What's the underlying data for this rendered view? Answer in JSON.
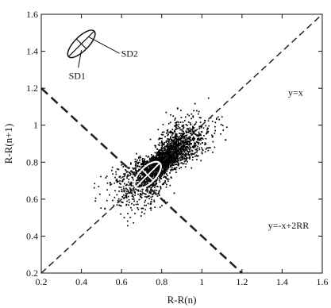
{
  "chart_data": {
    "type": "scatter",
    "title": "",
    "xlabel": "R-R(n)",
    "ylabel": "R-R(n+1)",
    "xlim": [
      0.2,
      1.6
    ],
    "ylim": [
      0.2,
      1.6
    ],
    "xticks": [
      "0.2",
      "0.4",
      "0.6",
      "0.8",
      "1",
      "1.2",
      "1.4",
      "1.6"
    ],
    "yticks": [
      "0.2",
      "0.4",
      "0.6",
      "0.8",
      "1",
      "1.2",
      "1.4",
      "1.6"
    ],
    "grid": false,
    "colors": {
      "points": "#000000",
      "ellipse": "#ffffff",
      "lines": "#222222"
    },
    "cloud": {
      "center": [
        0.8,
        0.8
      ],
      "spread_along_identity": 0.13,
      "spread_across_identity": 0.045,
      "range": [
        0.45,
        1.15
      ]
    },
    "lines": [
      {
        "name": "identity",
        "label": "y=x",
        "from": [
          0.2,
          0.2
        ],
        "to": [
          1.6,
          1.6
        ]
      },
      {
        "name": "perpendicular",
        "label": "y=-x+2RR",
        "from": [
          0.2,
          1.2
        ],
        "to": [
          1.2,
          0.2
        ]
      }
    ],
    "fitted_ellipse": {
      "center": [
        0.73,
        0.73
      ],
      "sd1": 0.04,
      "sd2": 0.085
    },
    "legend_ellipse": {
      "center": [
        0.4,
        1.44
      ],
      "sd1": 0.035,
      "sd2": 0.09,
      "sd1_label": "SD1",
      "sd2_label": "SD2"
    },
    "annotations": [
      {
        "text": "y=x",
        "x": 1.43,
        "y": 1.16
      },
      {
        "text": "y=-x+2RR",
        "x": 1.33,
        "y": 0.44
      }
    ]
  }
}
